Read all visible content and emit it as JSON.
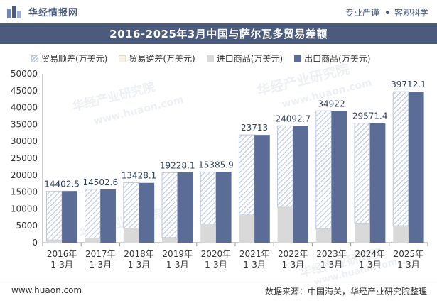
{
  "brand": {
    "name": "华经情报网"
  },
  "header": {
    "taglines": [
      "专业严谨",
      "客观科学"
    ]
  },
  "watermarks": [
    "华经产业研究院",
    "www.huaon.com"
  ],
  "footer": {
    "website": "www.huaon.com",
    "source": "数据来源：中国海关，华经产业研究院整理"
  },
  "colors": {
    "title_bg": "#4a5b7d",
    "export": "#5b6d96",
    "import": "#d9d9d9",
    "surplus_hatch": "#b9c5de",
    "deficit": "#f7f3e3"
  },
  "chart_data": {
    "type": "bar",
    "title": "2016-2025年3月中国与萨尔瓦多贸易差额",
    "categories": [
      "2016年\n1-3月",
      "2017年\n1-3月",
      "2018年\n1-3月",
      "2019年\n1-3月",
      "2020年\n1-3月",
      "2021年\n1-3月",
      "2022年\n1-3月",
      "2023年\n1-3月",
      "2024年\n1-3月",
      "2025年\n1-3月"
    ],
    "ylim": [
      0,
      50000
    ],
    "yticks": [
      0,
      5000,
      10000,
      15000,
      20000,
      25000,
      30000,
      35000,
      40000,
      45000,
      50000
    ],
    "grid": false,
    "legend_position": "top-left",
    "series": [
      {
        "name": "贸易顺差(万美元)",
        "style": "hatched",
        "values": [
          14402.5,
          14502.6,
          13428.1,
          19228.1,
          15385.9,
          23713,
          24092.7,
          34922,
          29571.4,
          39712.1
        ]
      },
      {
        "name": "贸易逆差(万美元)",
        "style": "light",
        "values": [
          0,
          0,
          0,
          0,
          0,
          0,
          0,
          0,
          0,
          0
        ]
      },
      {
        "name": "进口商品(万美元)",
        "style": "gray",
        "values": [
          800,
          1300,
          4300,
          1500,
          5500,
          8200,
          10500,
          4100,
          5800,
          5000
        ]
      },
      {
        "name": "出口商品(万美元)",
        "style": "navy",
        "values": [
          15300,
          15800,
          17700,
          20800,
          21000,
          31900,
          34600,
          39000,
          35300,
          44700
        ]
      }
    ]
  }
}
